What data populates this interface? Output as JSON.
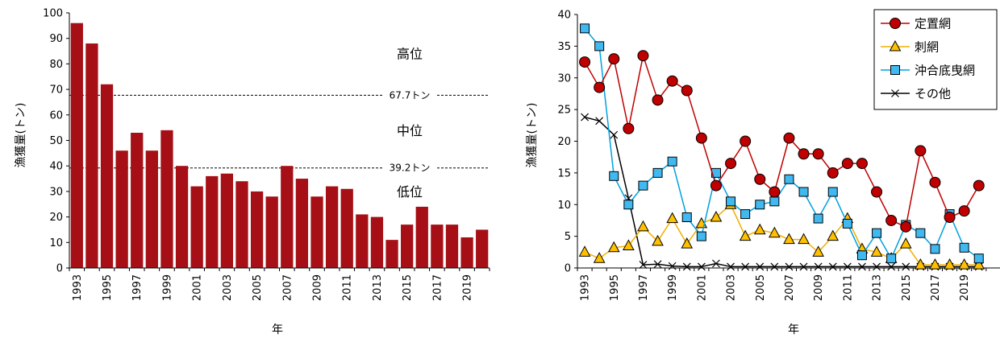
{
  "chart_data": [
    {
      "type": "bar",
      "ylabel": "漁獲量(トン)",
      "xlabel": "年",
      "ylim": [
        0,
        100
      ],
      "yticks": [
        "0",
        "10",
        "20",
        "30",
        "40",
        "50",
        "60",
        "70",
        "80",
        "90",
        "100"
      ],
      "categories": [
        1993,
        1994,
        1995,
        1996,
        1997,
        1998,
        1999,
        2000,
        2001,
        2002,
        2003,
        2004,
        2005,
        2006,
        2007,
        2008,
        2009,
        2010,
        2011,
        2012,
        2013,
        2014,
        2015,
        2016,
        2017,
        2018,
        2019,
        2020
      ],
      "xtick_labels": [
        "1993",
        "1995",
        "1997",
        "1999",
        "2001",
        "2003",
        "2005",
        "2007",
        "2009",
        "2011",
        "2013",
        "2015",
        "2017",
        "2019"
      ],
      "values": [
        96,
        88,
        72,
        46,
        53,
        46,
        54,
        40,
        32,
        36,
        37,
        34,
        30,
        28,
        40,
        35,
        28,
        32,
        31,
        21,
        20,
        11,
        17,
        24,
        17,
        17,
        12,
        15
      ],
      "bar_color": "#a50f15",
      "thresholds": [
        {
          "value": 67.7,
          "label": "67.7トン"
        },
        {
          "value": 39.2,
          "label": "39.2トン"
        }
      ],
      "zones": [
        {
          "label": "高位",
          "value": 84
        },
        {
          "label": "中位",
          "value": 54
        },
        {
          "label": "低位",
          "value": 30
        }
      ]
    },
    {
      "type": "line",
      "ylabel": "漁獲量(トン)",
      "xlabel": "年",
      "ylim": [
        0,
        40
      ],
      "yticks": [
        "0",
        "5",
        "10",
        "15",
        "20",
        "25",
        "30",
        "35",
        "40"
      ],
      "x": [
        1993,
        1994,
        1995,
        1996,
        1997,
        1998,
        1999,
        2000,
        2001,
        2002,
        2003,
        2004,
        2005,
        2006,
        2007,
        2008,
        2009,
        2010,
        2011,
        2012,
        2013,
        2014,
        2015,
        2016,
        2017,
        2018,
        2019,
        2020
      ],
      "xtick_labels": [
        "1993",
        "1995",
        "1997",
        "1999",
        "2001",
        "2003",
        "2005",
        "2007",
        "2009",
        "2011",
        "2013",
        "2015",
        "2017",
        "2019"
      ],
      "legend_position": "top-right",
      "series": [
        {
          "name": "定置網",
          "marker": "circle",
          "color": "#c00000",
          "fill": "#c00000",
          "values": [
            32.5,
            28.5,
            33,
            22,
            33.5,
            26.5,
            29.5,
            28,
            20.5,
            13,
            16.5,
            20,
            14,
            12,
            20.5,
            18,
            18,
            15,
            16.5,
            16.5,
            12,
            7.5,
            6.5,
            18.5,
            13.5,
            8,
            9,
            13
          ]
        },
        {
          "name": "刺網",
          "marker": "triangle",
          "color": "#f0b000",
          "fill": "#ffc000",
          "values": [
            2.5,
            1.5,
            3.2,
            3.5,
            6.5,
            4.2,
            7.8,
            3.8,
            7,
            8,
            10,
            5,
            6,
            5.5,
            4.5,
            4.5,
            2.5,
            5,
            7.8,
            3,
            2.5,
            1.5,
            3.8,
            0.5,
            0.5,
            0.5,
            0.5,
            0.5
          ]
        },
        {
          "name": "沖合底曳網",
          "marker": "square",
          "color": "#00a0e0",
          "fill": "#40b8f0",
          "values": [
            37.8,
            35,
            14.5,
            10,
            13,
            15,
            16.8,
            8,
            5,
            15,
            10.5,
            8.5,
            10,
            10.5,
            14,
            12,
            7.8,
            12,
            7,
            2,
            5.5,
            1.5,
            6.8,
            5.5,
            3,
            8.5,
            3.2,
            1.5
          ]
        },
        {
          "name": "その他",
          "marker": "x",
          "color": "#000000",
          "fill": "#000000",
          "values": [
            23.8,
            23.2,
            21,
            11,
            0.5,
            0.6,
            0.3,
            0.2,
            0.2,
            0.7,
            0.2,
            0.2,
            0.2,
            0.2,
            0.2,
            0.2,
            0.2,
            0.2,
            0.2,
            0.2,
            0.2,
            0.2,
            0.2,
            0.2,
            0.2,
            0.2,
            0.2,
            0.2
          ]
        }
      ]
    }
  ]
}
